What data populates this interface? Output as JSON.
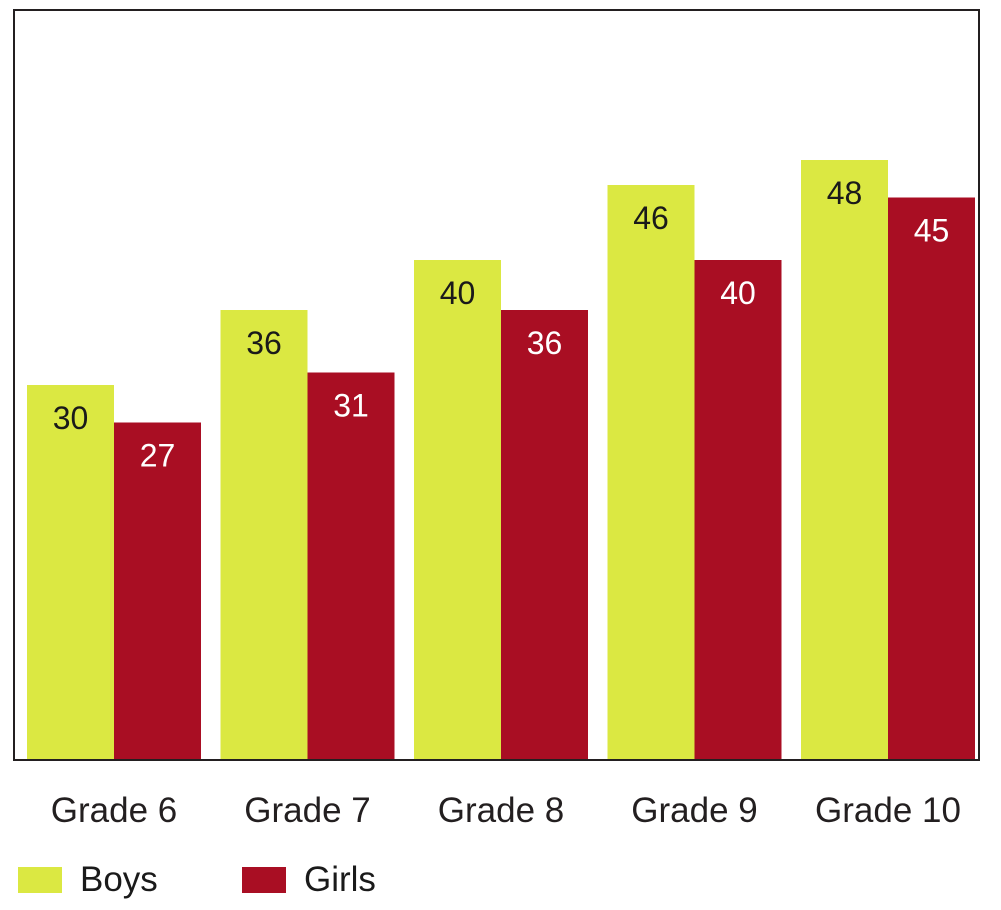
{
  "chart_data": {
    "type": "bar",
    "title": "",
    "xlabel": "",
    "ylabel": "",
    "categories": [
      "Grade 6",
      "Grade 7",
      "Grade 8",
      "Grade 9",
      "Grade 10"
    ],
    "series": [
      {
        "name": "Boys",
        "color": "#dbe842",
        "label_color": "#1a1a1a",
        "values": [
          30,
          36,
          40,
          46,
          48
        ]
      },
      {
        "name": "Girls",
        "color": "#a90e23",
        "label_color": "#ffffff",
        "values": [
          27,
          31,
          36,
          40,
          45
        ]
      }
    ],
    "ylim": [
      0,
      60
    ],
    "grid": false,
    "legend_position": "bottom-left"
  },
  "legend": {
    "items": [
      {
        "label": "Boys",
        "color": "#dbe842"
      },
      {
        "label": "Girls",
        "color": "#a90e23"
      }
    ]
  }
}
